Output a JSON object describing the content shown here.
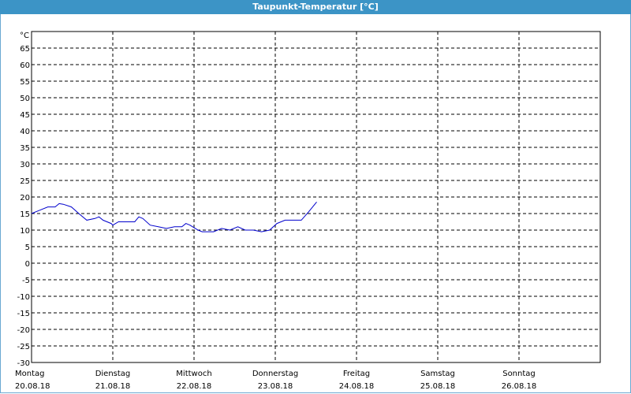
{
  "window": {
    "title": "Taupunkt-Temperatur [°C]"
  },
  "colors": {
    "titlebar": "#3c94c6",
    "series": "#0000cc",
    "grid": "#000000"
  },
  "chart_data": {
    "type": "line",
    "ylabel": "°C",
    "ylim": [
      -30,
      70
    ],
    "yticks": [
      65,
      60,
      55,
      50,
      45,
      40,
      35,
      30,
      25,
      20,
      15,
      10,
      5,
      0,
      -5,
      -10,
      -15,
      -20,
      -25,
      -30
    ],
    "xlim": [
      0,
      7
    ],
    "grid": true,
    "xticks": [
      {
        "day": "Montag",
        "date": "20.08.18"
      },
      {
        "day": "Dienstag",
        "date": "21.08.18"
      },
      {
        "day": "Mittwoch",
        "date": "22.08.18"
      },
      {
        "day": "Donnerstag",
        "date": "23.08.18"
      },
      {
        "day": "Freitag",
        "date": "24.08.18"
      },
      {
        "day": "Samstag",
        "date": "25.08.18"
      },
      {
        "day": "Sonntag",
        "date": "26.08.18"
      }
    ],
    "series": [
      {
        "x": [
          0.0,
          0.1,
          0.2,
          0.29,
          0.34,
          0.39,
          0.49,
          0.59,
          0.68,
          0.78,
          0.83,
          0.88,
          0.98,
          1.0,
          1.07,
          1.17,
          1.27,
          1.32,
          1.37,
          1.46,
          1.56,
          1.66,
          1.76,
          1.85,
          1.9,
          1.95,
          2.05,
          2.1,
          2.15,
          2.24,
          2.34,
          2.44,
          2.54,
          2.63,
          2.73,
          2.83,
          2.93,
          3.02,
          3.12,
          3.22,
          3.32,
          3.41,
          3.46,
          3.51
        ],
        "y": [
          15,
          16,
          17,
          17,
          18,
          17.8,
          17,
          14.8,
          13,
          13.5,
          14,
          13,
          12,
          11.5,
          12.5,
          12.5,
          12.5,
          14,
          13.5,
          11.5,
          11,
          10.5,
          11,
          11,
          12,
          11.5,
          10,
          9.5,
          9.5,
          9.5,
          10.5,
          10,
          11,
          10,
          10,
          9.5,
          10,
          12,
          13,
          13,
          13,
          15.5,
          17,
          18.5
        ]
      }
    ]
  }
}
